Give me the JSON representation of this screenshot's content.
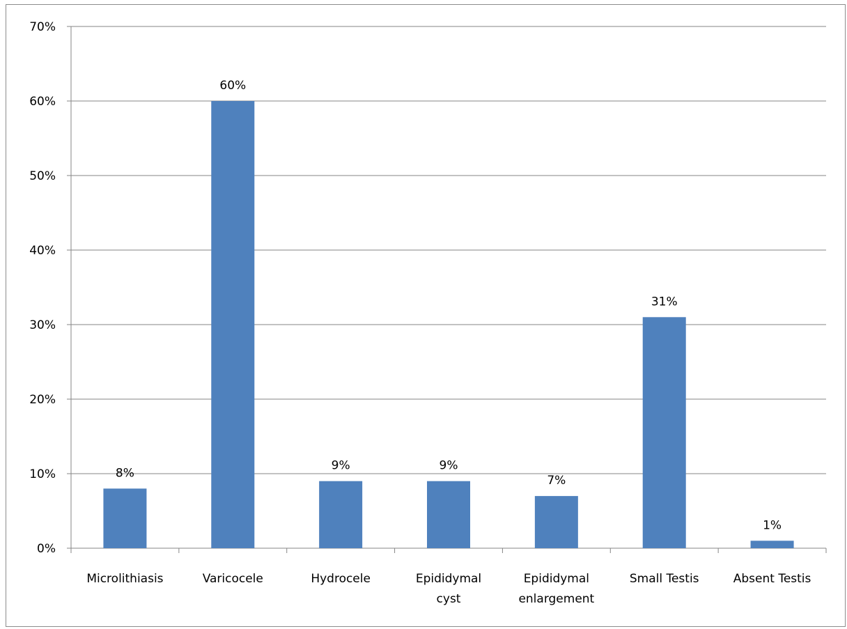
{
  "chart_data": {
    "type": "bar",
    "title": "",
    "xlabel": "",
    "ylabel": "",
    "categories": [
      [
        "Microlithiasis"
      ],
      [
        "Varicocele"
      ],
      [
        "Hydrocele"
      ],
      [
        "Epididymal",
        "cyst"
      ],
      [
        "Epididymal",
        "enlargement"
      ],
      [
        "Small Testis"
      ],
      [
        "Absent Testis"
      ]
    ],
    "values": [
      0.08,
      0.6,
      0.09,
      0.09,
      0.07,
      0.31,
      0.01
    ],
    "data_labels": [
      "8%",
      "60%",
      "9%",
      "9%",
      "7%",
      "31%",
      "1%"
    ],
    "ylim": [
      0,
      0.7
    ],
    "y_ticks": [
      0,
      0.1,
      0.2,
      0.3,
      0.4,
      0.5,
      0.6,
      0.7
    ],
    "y_tick_labels": [
      "0%",
      "10%",
      "20%",
      "30%",
      "40%",
      "50%",
      "60%",
      "70%"
    ],
    "grid": true,
    "legend": "none",
    "colors": {
      "bar": "#4f81bd",
      "grid": "#868686",
      "axis": "#868686",
      "frame": "#8c8c8c"
    }
  }
}
